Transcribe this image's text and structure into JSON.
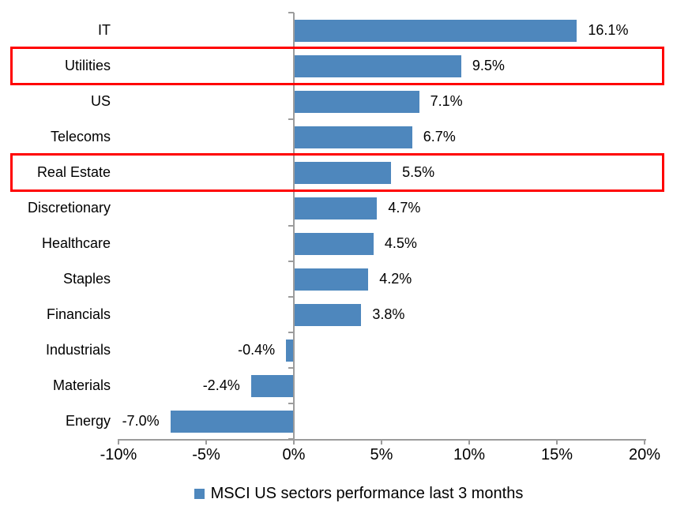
{
  "chart_data": {
    "type": "bar",
    "orientation": "horizontal",
    "legend": {
      "label": "MSCI US sectors performance last 3 months",
      "marker_color": "#4E87BD",
      "position": "bottom"
    },
    "categories": [
      "IT",
      "Utilities",
      "US",
      "Telecoms",
      "Real Estate",
      "Discretionary",
      "Healthcare",
      "Staples",
      "Financials",
      "Industrials",
      "Materials",
      "Energy"
    ],
    "series": [
      {
        "name": "MSCI US sectors performance last 3 months",
        "data": [
          {
            "category": "IT",
            "value": 16.1,
            "label": "16.1%",
            "highlighted": false
          },
          {
            "category": "Utilities",
            "value": 9.5,
            "label": "9.5%",
            "highlighted": true
          },
          {
            "category": "US",
            "value": 7.1,
            "label": "7.1%",
            "highlighted": false
          },
          {
            "category": "Telecoms",
            "value": 6.7,
            "label": "6.7%",
            "highlighted": false
          },
          {
            "category": "Real Estate",
            "value": 5.5,
            "label": "5.5%",
            "highlighted": true
          },
          {
            "category": "Discretionary",
            "value": 4.7,
            "label": "4.7%",
            "highlighted": false
          },
          {
            "category": "Healthcare",
            "value": 4.5,
            "label": "4.5%",
            "highlighted": false
          },
          {
            "category": "Staples",
            "value": 4.2,
            "label": "4.2%",
            "highlighted": false
          },
          {
            "category": "Financials",
            "value": 3.8,
            "label": "3.8%",
            "highlighted": false
          },
          {
            "category": "Industrials",
            "value": -0.4,
            "label": "-0.4%",
            "highlighted": false
          },
          {
            "category": "Materials",
            "value": -2.4,
            "label": "-2.4%",
            "highlighted": false
          },
          {
            "category": "Energy",
            "value": -7.0,
            "label": "-7.0%",
            "highlighted": false
          }
        ]
      }
    ],
    "x_axis": {
      "min": -10,
      "max": 20,
      "ticks": [
        {
          "value": -10,
          "label": "-10%"
        },
        {
          "value": -5,
          "label": "-5%"
        },
        {
          "value": 0,
          "label": "0%"
        },
        {
          "value": 5,
          "label": "5%"
        },
        {
          "value": 10,
          "label": "10%"
        },
        {
          "value": 15,
          "label": "15%"
        },
        {
          "value": 20,
          "label": "20%"
        }
      ]
    },
    "grid": false,
    "colors": {
      "bar": "#4E87BD",
      "highlight_box": "#FF0000",
      "axis": "#9C9C9C",
      "text": "#000000"
    }
  }
}
